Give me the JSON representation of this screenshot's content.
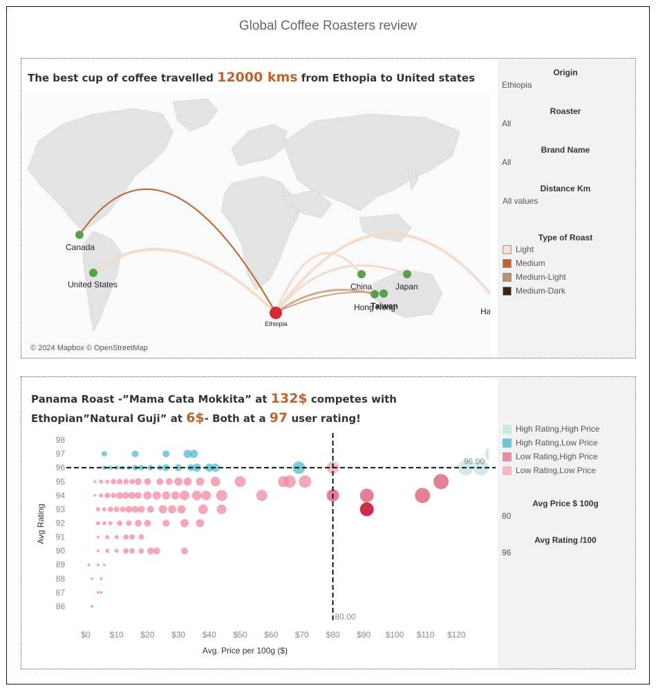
{
  "title": "Global Coffee Roasters review",
  "map_panel": {
    "headline_pre": "The best cup of coffee travelled ",
    "headline_num": "12000 kms",
    "headline_post": " from Ethopia to United states",
    "credit": "© 2024 Mapbox © OpenStreetMap",
    "origin_point": "Ethiopia",
    "destinations": [
      "Canada",
      "United States",
      "China",
      "Japan",
      "Hong Kong",
      "Taiwan",
      "Hawai'i"
    ],
    "colors": {
      "origin": "#d62a3b",
      "destination": "#5aa04a"
    }
  },
  "map_filters": {
    "origin_label": "Origin",
    "origin_value": "Ethiopia",
    "roaster_label": "Roaster",
    "roaster_value": "All",
    "brand_label": "Brand Name",
    "brand_value": "All",
    "distance_label": "Distance Km",
    "distance_value": "All values",
    "roast_label": "Type of Roast",
    "roast_types": [
      {
        "label": "Light",
        "color": "#f6e1cf"
      },
      {
        "label": "Medium",
        "color": "#c0622a"
      },
      {
        "label": "Medium-Light",
        "color": "#b88f72"
      },
      {
        "label": "Medium-Dark",
        "color": "#3b2314"
      }
    ]
  },
  "scatter_panel": {
    "headline1_pre": "Panama Roast -”Mama Cata Mokkita” at ",
    "headline1_num": "132$",
    "headline1_post": " competes with",
    "headline2_pre": "Ethopian”Natural Guji” at ",
    "headline2_num": "6$",
    "headline2_mid": "- Both at a ",
    "headline2_num2": "97",
    "headline2_post": " user rating!"
  },
  "scatter_side": {
    "legend": [
      {
        "label": "High Rating,High Price",
        "color": "#c6e8e6"
      },
      {
        "label": "High Rating,Low Price",
        "color": "#6cc6d0"
      },
      {
        "label": "Low Rating,High Price",
        "color": "#e48fa0"
      },
      {
        "label": "Low Rating,Low Price",
        "color": "#f7b8c6"
      }
    ],
    "avg_price_label": "Avg Price $ 100g",
    "avg_price_value": "80",
    "avg_rating_label": "Avg Rating /100",
    "avg_rating_value": "96"
  },
  "chart_data": {
    "type": "scatter",
    "xlabel": "Avg. Price per 100g ($)",
    "ylabel": "Avg Rating",
    "xlim": [
      0,
      130
    ],
    "ylim": [
      85.7,
      98.2
    ],
    "x_ticks": [
      "$0",
      "$10",
      "$20",
      "$30",
      "$40",
      "$50",
      "$60",
      "$70",
      "$80",
      "$90",
      "$100",
      "$110",
      "$120"
    ],
    "y_ticks": [
      86,
      87,
      88,
      89,
      90,
      91,
      92,
      93,
      94,
      95,
      96,
      97,
      98
    ],
    "ref_x": 80,
    "ref_x_label": "80.00",
    "ref_y": 96,
    "ref_y_label": "96.00",
    "points": [
      {
        "x": 6,
        "y": 97,
        "s": 4
      },
      {
        "x": 16,
        "y": 97,
        "s": 5
      },
      {
        "x": 26,
        "y": 97,
        "s": 5
      },
      {
        "x": 33,
        "y": 97,
        "s": 6
      },
      {
        "x": 35,
        "y": 97,
        "s": 6
      },
      {
        "x": 6,
        "y": 96,
        "s": 3
      },
      {
        "x": 8,
        "y": 96,
        "s": 3
      },
      {
        "x": 10,
        "y": 96,
        "s": 3
      },
      {
        "x": 12,
        "y": 96,
        "s": 3
      },
      {
        "x": 14,
        "y": 96,
        "s": 3
      },
      {
        "x": 16,
        "y": 96,
        "s": 4
      },
      {
        "x": 18,
        "y": 96,
        "s": 4
      },
      {
        "x": 21,
        "y": 96,
        "s": 4
      },
      {
        "x": 24,
        "y": 96,
        "s": 4
      },
      {
        "x": 26,
        "y": 96,
        "s": 5
      },
      {
        "x": 30,
        "y": 96,
        "s": 5
      },
      {
        "x": 34,
        "y": 96,
        "s": 5
      },
      {
        "x": 36,
        "y": 96,
        "s": 6
      },
      {
        "x": 40,
        "y": 96,
        "s": 6
      },
      {
        "x": 42,
        "y": 96,
        "s": 6
      },
      {
        "x": 69,
        "y": 96,
        "s": 9
      },
      {
        "x": 80,
        "y": 96,
        "s": 9
      },
      {
        "x": 123,
        "y": 96,
        "s": 11
      },
      {
        "x": 128,
        "y": 96,
        "s": 11
      },
      {
        "x": 132,
        "y": 97,
        "s": 12
      },
      {
        "x": 3,
        "y": 95,
        "s": 2
      },
      {
        "x": 5,
        "y": 95,
        "s": 3
      },
      {
        "x": 7,
        "y": 95,
        "s": 3
      },
      {
        "x": 9,
        "y": 95,
        "s": 4
      },
      {
        "x": 11,
        "y": 95,
        "s": 4
      },
      {
        "x": 13,
        "y": 95,
        "s": 4
      },
      {
        "x": 15,
        "y": 95,
        "s": 4
      },
      {
        "x": 17,
        "y": 95,
        "s": 5
      },
      {
        "x": 20,
        "y": 95,
        "s": 5
      },
      {
        "x": 24,
        "y": 95,
        "s": 5
      },
      {
        "x": 27,
        "y": 95,
        "s": 5
      },
      {
        "x": 30,
        "y": 95,
        "s": 6
      },
      {
        "x": 33,
        "y": 95,
        "s": 6
      },
      {
        "x": 37,
        "y": 95,
        "s": 6
      },
      {
        "x": 42,
        "y": 95,
        "s": 7
      },
      {
        "x": 50,
        "y": 95,
        "s": 8
      },
      {
        "x": 64,
        "y": 95,
        "s": 8
      },
      {
        "x": 66,
        "y": 95,
        "s": 9
      },
      {
        "x": 71,
        "y": 95,
        "s": 9
      },
      {
        "x": 115,
        "y": 95,
        "s": 11
      },
      {
        "x": 3,
        "y": 94,
        "s": 2
      },
      {
        "x": 5,
        "y": 94,
        "s": 3
      },
      {
        "x": 7,
        "y": 94,
        "s": 4
      },
      {
        "x": 9,
        "y": 94,
        "s": 4
      },
      {
        "x": 11,
        "y": 94,
        "s": 5
      },
      {
        "x": 13,
        "y": 94,
        "s": 5
      },
      {
        "x": 15,
        "y": 94,
        "s": 5
      },
      {
        "x": 17,
        "y": 94,
        "s": 5
      },
      {
        "x": 20,
        "y": 94,
        "s": 6
      },
      {
        "x": 23,
        "y": 94,
        "s": 6
      },
      {
        "x": 26,
        "y": 94,
        "s": 6
      },
      {
        "x": 29,
        "y": 94,
        "s": 6
      },
      {
        "x": 32,
        "y": 94,
        "s": 7
      },
      {
        "x": 36,
        "y": 94,
        "s": 7
      },
      {
        "x": 39,
        "y": 94,
        "s": 7
      },
      {
        "x": 44,
        "y": 94,
        "s": 8
      },
      {
        "x": 57,
        "y": 94,
        "s": 8
      },
      {
        "x": 80,
        "y": 94,
        "s": 9
      },
      {
        "x": 91,
        "y": 94,
        "s": 10
      },
      {
        "x": 109,
        "y": 94,
        "s": 11
      },
      {
        "x": 4,
        "y": 93,
        "s": 3
      },
      {
        "x": 6,
        "y": 93,
        "s": 3
      },
      {
        "x": 8,
        "y": 93,
        "s": 4
      },
      {
        "x": 10,
        "y": 93,
        "s": 4
      },
      {
        "x": 12,
        "y": 93,
        "s": 4
      },
      {
        "x": 14,
        "y": 93,
        "s": 5
      },
      {
        "x": 16,
        "y": 93,
        "s": 5
      },
      {
        "x": 18,
        "y": 93,
        "s": 5
      },
      {
        "x": 21,
        "y": 93,
        "s": 5
      },
      {
        "x": 25,
        "y": 93,
        "s": 6
      },
      {
        "x": 28,
        "y": 93,
        "s": 6
      },
      {
        "x": 31,
        "y": 93,
        "s": 6
      },
      {
        "x": 38,
        "y": 93,
        "s": 7
      },
      {
        "x": 44,
        "y": 93,
        "s": 7
      },
      {
        "x": 91,
        "y": 93,
        "s": 10
      },
      {
        "x": 4,
        "y": 92,
        "s": 3
      },
      {
        "x": 6,
        "y": 92,
        "s": 3
      },
      {
        "x": 8,
        "y": 92,
        "s": 3
      },
      {
        "x": 11,
        "y": 92,
        "s": 4
      },
      {
        "x": 14,
        "y": 92,
        "s": 4
      },
      {
        "x": 17,
        "y": 92,
        "s": 5
      },
      {
        "x": 20,
        "y": 92,
        "s": 5
      },
      {
        "x": 26,
        "y": 92,
        "s": 5
      },
      {
        "x": 32,
        "y": 92,
        "s": 6
      },
      {
        "x": 37,
        "y": 92,
        "s": 6
      },
      {
        "x": 4,
        "y": 91,
        "s": 2
      },
      {
        "x": 7,
        "y": 91,
        "s": 3
      },
      {
        "x": 10,
        "y": 91,
        "s": 3
      },
      {
        "x": 13,
        "y": 91,
        "s": 4
      },
      {
        "x": 15,
        "y": 91,
        "s": 4
      },
      {
        "x": 18,
        "y": 91,
        "s": 4
      },
      {
        "x": 4,
        "y": 90,
        "s": 2
      },
      {
        "x": 7,
        "y": 90,
        "s": 3
      },
      {
        "x": 10,
        "y": 90,
        "s": 3
      },
      {
        "x": 13,
        "y": 90,
        "s": 4
      },
      {
        "x": 15,
        "y": 90,
        "s": 4
      },
      {
        "x": 18,
        "y": 90,
        "s": 4
      },
      {
        "x": 21,
        "y": 90,
        "s": 5
      },
      {
        "x": 23,
        "y": 90,
        "s": 5
      },
      {
        "x": 32,
        "y": 90,
        "s": 5
      },
      {
        "x": 1,
        "y": 89,
        "s": 2
      },
      {
        "x": 4,
        "y": 89,
        "s": 2
      },
      {
        "x": 6,
        "y": 89,
        "s": 2
      },
      {
        "x": 2,
        "y": 88,
        "s": 2
      },
      {
        "x": 5,
        "y": 88,
        "s": 2
      },
      {
        "x": 4,
        "y": 87,
        "s": 2
      },
      {
        "x": 5,
        "y": 87,
        "s": 2
      },
      {
        "x": 2,
        "y": 86,
        "s": 2
      }
    ]
  }
}
